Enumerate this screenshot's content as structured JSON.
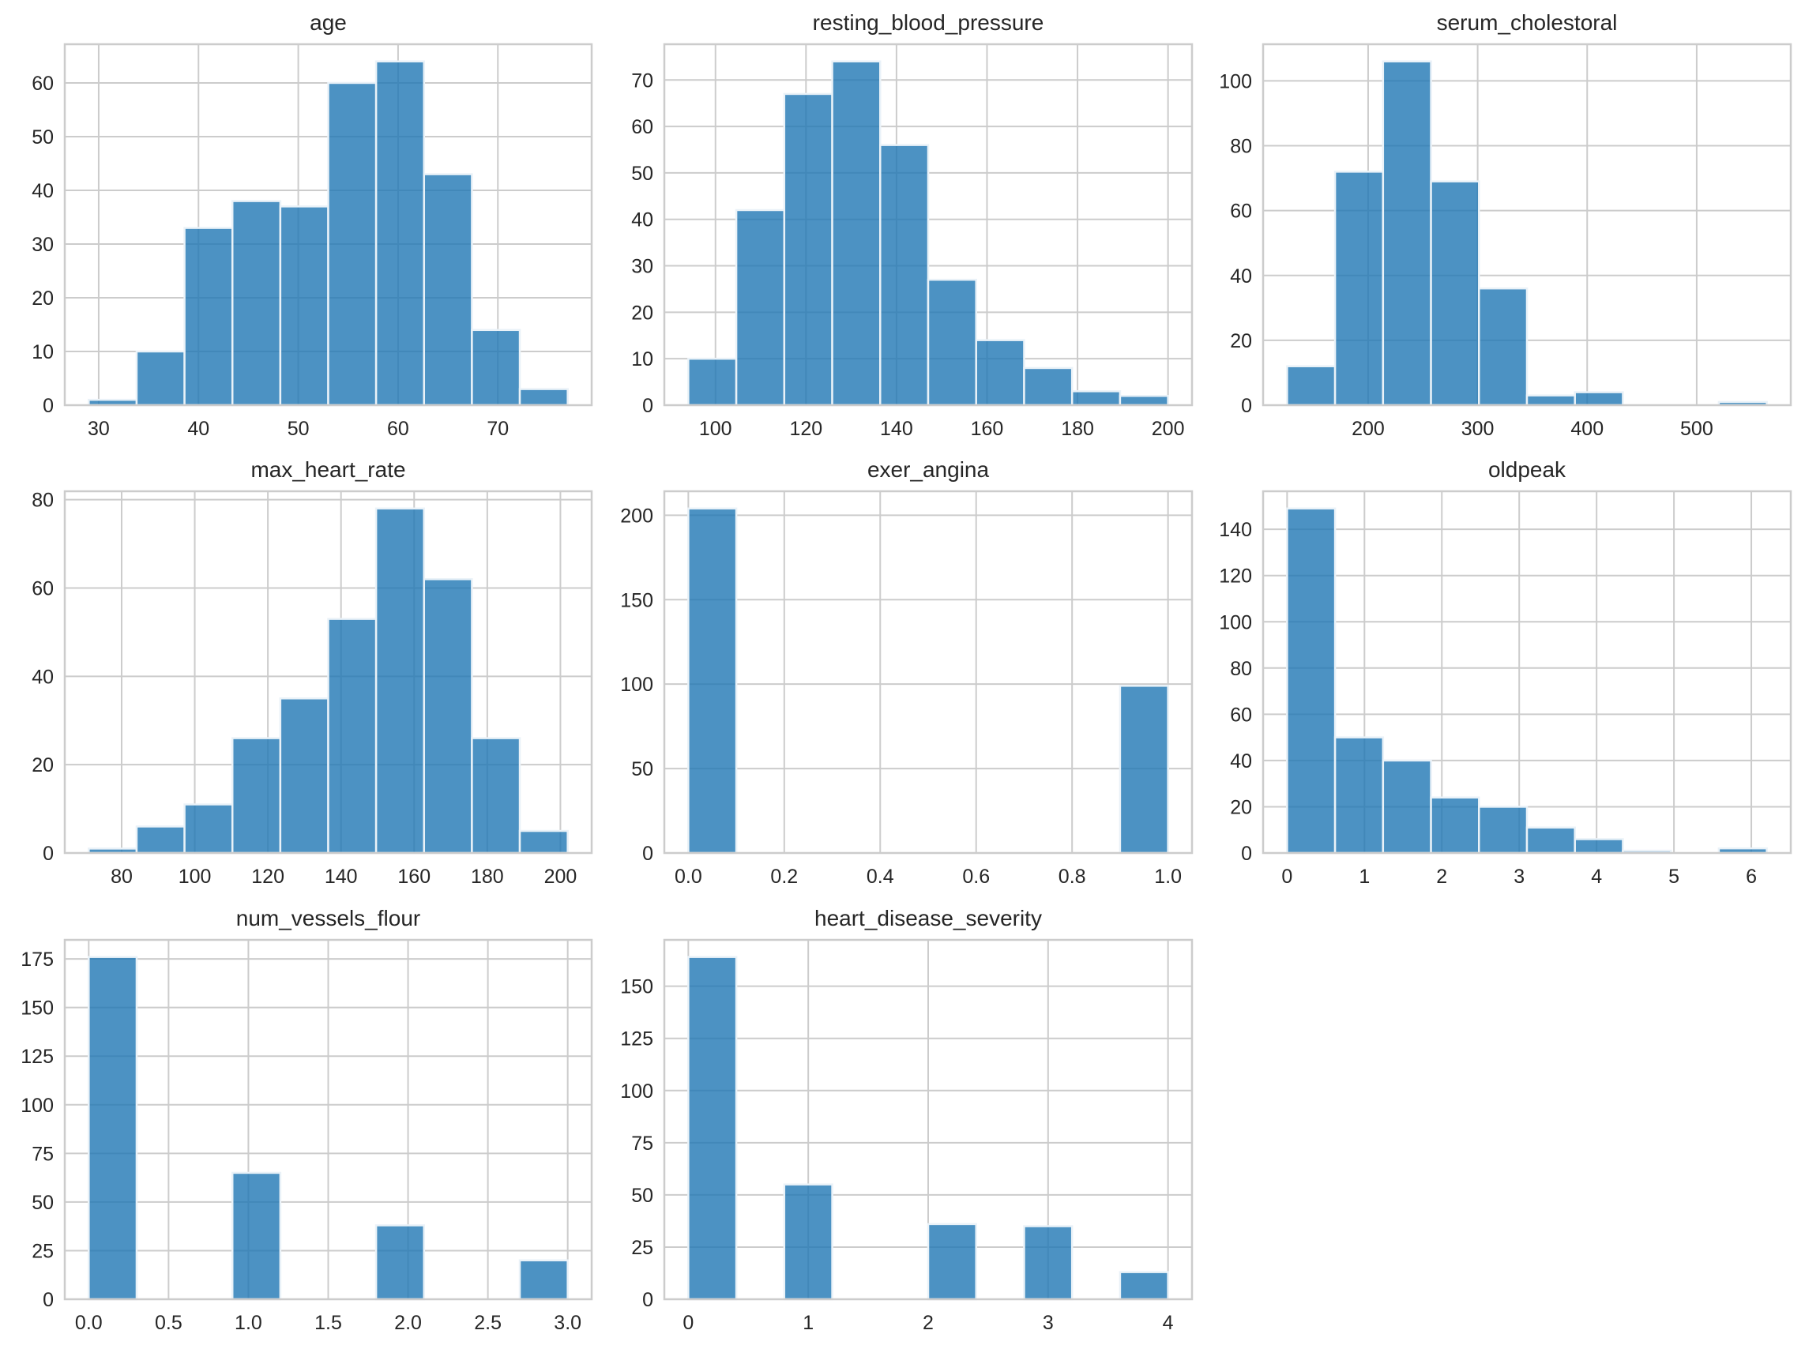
{
  "figure": {
    "background": "#ffffff",
    "bar_color": "#1f77b4",
    "bar_alpha": 0.8,
    "grid_color": "#cccccc",
    "text_color": "#262626"
  },
  "chart_data": [
    {
      "type": "bar",
      "subtype": "histogram",
      "title": "age",
      "xlabel": "",
      "ylabel": "",
      "bin_edges": [
        29.0,
        33.8,
        38.6,
        43.4,
        48.2,
        53.0,
        57.8,
        62.6,
        67.4,
        72.2,
        77.0
      ],
      "values": [
        1,
        10,
        33,
        38,
        37,
        60,
        64,
        43,
        14,
        3
      ],
      "xlim": [
        26.6,
        79.4
      ],
      "ylim": [
        0,
        67.2
      ],
      "xticks": [
        30,
        40,
        50,
        60,
        70
      ],
      "xtick_labels": [
        "30",
        "40",
        "50",
        "60",
        "70"
      ],
      "yticks": [
        0,
        10,
        20,
        30,
        40,
        50,
        60
      ],
      "ytick_labels": [
        "0",
        "10",
        "20",
        "30",
        "40",
        "50",
        "60"
      ],
      "grid": true
    },
    {
      "type": "bar",
      "subtype": "histogram",
      "title": "resting_blood_pressure",
      "xlabel": "",
      "ylabel": "",
      "bin_edges": [
        94.0,
        104.6,
        115.2,
        125.8,
        136.4,
        147.0,
        157.6,
        168.2,
        178.8,
        189.4,
        200.0
      ],
      "values": [
        10,
        42,
        67,
        74,
        56,
        27,
        14,
        8,
        3,
        2
      ],
      "xlim": [
        88.7,
        205.3
      ],
      "ylim": [
        0,
        77.7
      ],
      "xticks": [
        100,
        120,
        140,
        160,
        180,
        200
      ],
      "xtick_labels": [
        "100",
        "120",
        "140",
        "160",
        "180",
        "200"
      ],
      "yticks": [
        0,
        10,
        20,
        30,
        40,
        50,
        60,
        70
      ],
      "ytick_labels": [
        "0",
        "10",
        "20",
        "30",
        "40",
        "50",
        "60",
        "70"
      ],
      "grid": true
    },
    {
      "type": "bar",
      "subtype": "histogram",
      "title": "serum_cholestoral",
      "xlabel": "",
      "ylabel": "",
      "bin_edges": [
        126.0,
        169.8,
        213.6,
        257.4,
        301.2,
        345.0,
        388.8,
        432.6,
        476.4,
        520.2,
        564.0
      ],
      "values": [
        12,
        72,
        106,
        69,
        36,
        3,
        4,
        0,
        0,
        1
      ],
      "xlim": [
        104.1,
        585.9
      ],
      "ylim": [
        0,
        111.3
      ],
      "xticks": [
        200,
        300,
        400,
        500
      ],
      "xtick_labels": [
        "200",
        "300",
        "400",
        "500"
      ],
      "yticks": [
        0,
        20,
        40,
        60,
        80,
        100
      ],
      "ytick_labels": [
        "0",
        "20",
        "40",
        "60",
        "80",
        "100"
      ],
      "grid": true
    },
    {
      "type": "bar",
      "subtype": "histogram",
      "title": "max_heart_rate",
      "xlabel": "",
      "ylabel": "",
      "bin_edges": [
        71.0,
        84.1,
        97.2,
        110.3,
        123.4,
        136.5,
        149.6,
        162.7,
        175.8,
        188.9,
        202.0
      ],
      "values": [
        1,
        6,
        11,
        26,
        35,
        53,
        78,
        62,
        26,
        5
      ],
      "xlim": [
        64.45,
        208.55
      ],
      "ylim": [
        0,
        81.9
      ],
      "xticks": [
        80,
        100,
        120,
        140,
        160,
        180,
        200
      ],
      "xtick_labels": [
        "80",
        "100",
        "120",
        "140",
        "160",
        "180",
        "200"
      ],
      "yticks": [
        0,
        20,
        40,
        60,
        80
      ],
      "ytick_labels": [
        "0",
        "20",
        "40",
        "60",
        "80"
      ],
      "grid": true
    },
    {
      "type": "bar",
      "subtype": "histogram",
      "title": "exer_angina",
      "xlabel": "",
      "ylabel": "",
      "bin_edges": [
        0.0,
        0.1,
        0.2,
        0.3,
        0.4,
        0.5,
        0.6,
        0.7,
        0.8,
        0.9,
        1.0
      ],
      "values": [
        204,
        0,
        0,
        0,
        0,
        0,
        0,
        0,
        0,
        99
      ],
      "xlim": [
        -0.05,
        1.05
      ],
      "ylim": [
        0,
        214.2
      ],
      "xticks": [
        0.0,
        0.2,
        0.4,
        0.6,
        0.8,
        1.0
      ],
      "xtick_labels": [
        "0.0",
        "0.2",
        "0.4",
        "0.6",
        "0.8",
        "1.0"
      ],
      "yticks": [
        0,
        50,
        100,
        150,
        200
      ],
      "ytick_labels": [
        "0",
        "50",
        "100",
        "150",
        "200"
      ],
      "grid": true
    },
    {
      "type": "bar",
      "subtype": "histogram",
      "title": "oldpeak",
      "xlabel": "",
      "ylabel": "",
      "bin_edges": [
        0.0,
        0.62,
        1.24,
        1.86,
        2.48,
        3.1,
        3.72,
        4.34,
        4.96,
        5.58,
        6.2
      ],
      "values": [
        149,
        50,
        40,
        24,
        20,
        11,
        6,
        1,
        0,
        2
      ],
      "xlim": [
        -0.31,
        6.51
      ],
      "ylim": [
        0,
        156.45
      ],
      "xticks": [
        0,
        1,
        2,
        3,
        4,
        5,
        6
      ],
      "xtick_labels": [
        "0",
        "1",
        "2",
        "3",
        "4",
        "5",
        "6"
      ],
      "yticks": [
        0,
        20,
        40,
        60,
        80,
        100,
        120,
        140
      ],
      "ytick_labels": [
        "0",
        "20",
        "40",
        "60",
        "80",
        "100",
        "120",
        "140"
      ],
      "grid": true
    },
    {
      "type": "bar",
      "subtype": "histogram",
      "title": "num_vessels_flour",
      "xlabel": "",
      "ylabel": "",
      "bin_edges": [
        0.0,
        0.3,
        0.6,
        0.9,
        1.2,
        1.5,
        1.8,
        2.1,
        2.4,
        2.7,
        3.0
      ],
      "values": [
        176,
        0,
        0,
        65,
        0,
        0,
        38,
        0,
        0,
        20
      ],
      "xlim": [
        -0.15,
        3.15
      ],
      "ylim": [
        0,
        184.8
      ],
      "xticks": [
        0.0,
        0.5,
        1.0,
        1.5,
        2.0,
        2.5,
        3.0
      ],
      "xtick_labels": [
        "0.0",
        "0.5",
        "1.0",
        "1.5",
        "2.0",
        "2.5",
        "3.0"
      ],
      "yticks": [
        0,
        25,
        50,
        75,
        100,
        125,
        150,
        175
      ],
      "ytick_labels": [
        "0",
        "25",
        "50",
        "75",
        "100",
        "125",
        "150",
        "175"
      ],
      "grid": true
    },
    {
      "type": "bar",
      "subtype": "histogram",
      "title": "heart_disease_severity",
      "xlabel": "",
      "ylabel": "",
      "bin_edges": [
        0.0,
        0.4,
        0.8,
        1.2,
        1.6,
        2.0,
        2.4,
        2.8,
        3.2,
        3.6,
        4.0
      ],
      "values": [
        164,
        0,
        55,
        0,
        0,
        36,
        0,
        35,
        0,
        13
      ],
      "xlim": [
        -0.2,
        4.2
      ],
      "ylim": [
        0,
        172.2
      ],
      "xticks": [
        0,
        1,
        2,
        3,
        4
      ],
      "xtick_labels": [
        "0",
        "1",
        "2",
        "3",
        "4"
      ],
      "yticks": [
        0,
        25,
        50,
        75,
        100,
        125,
        150
      ],
      "ytick_labels": [
        "0",
        "25",
        "50",
        "75",
        "100",
        "125",
        "150"
      ],
      "grid": true
    }
  ]
}
